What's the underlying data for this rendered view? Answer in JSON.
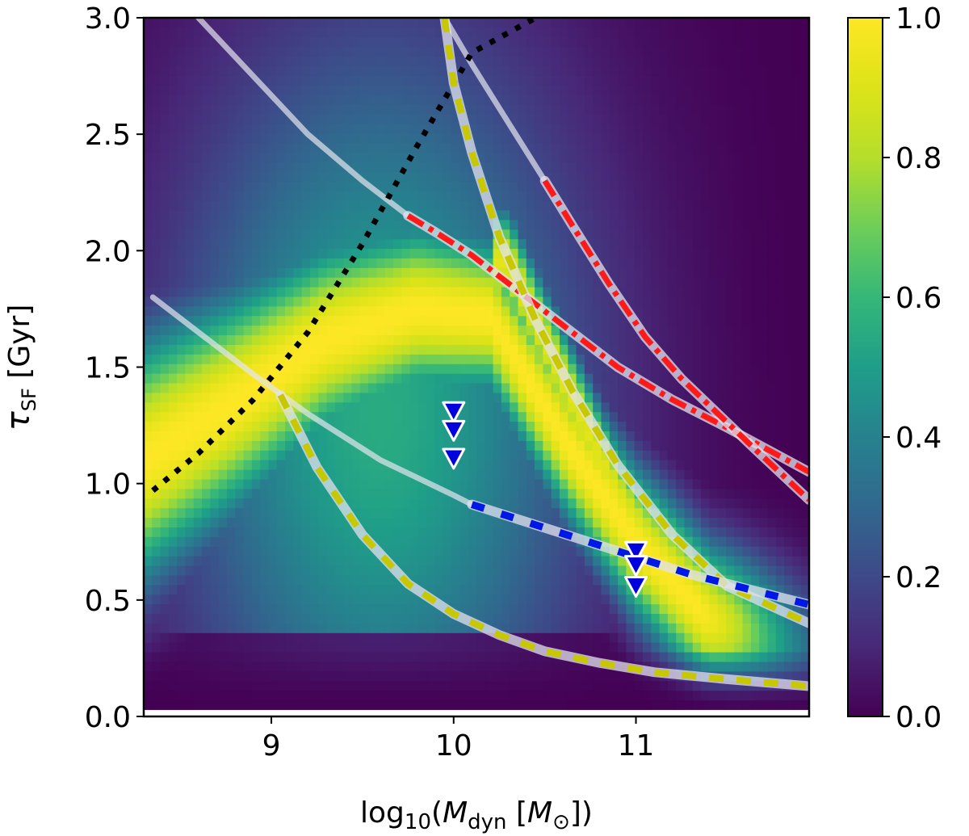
{
  "chart_data": {
    "type": "heatmap",
    "title": "",
    "xlabel": "log10(M_dyn [M_⊙])",
    "ylabel": "τ_SF [Gyr]",
    "xlabel_parts": {
      "pre": "log",
      "pre_sub": "10",
      "open": "(",
      "var": "M",
      "var_sub": "dyn",
      "unit_open": " [",
      "unit": "M",
      "unit_sub": "⊙",
      "close": "])"
    },
    "ylabel_parts": {
      "sym": "τ",
      "sym_sub": "SF",
      "unit": " [Gyr]"
    },
    "xlim": [
      8.3,
      11.95
    ],
    "ylim": [
      0.0,
      3.0
    ],
    "x_ticks": [
      9,
      10,
      11
    ],
    "x_tick_labels": [
      "9",
      "10",
      "11"
    ],
    "y_ticks": [
      0.0,
      0.5,
      1.0,
      1.5,
      2.0,
      2.5,
      3.0
    ],
    "y_tick_labels": [
      "0.0",
      "0.5",
      "1.0",
      "1.5",
      "2.0",
      "2.5",
      "3.0"
    ],
    "colorbar": {
      "colormap": "viridis",
      "range": [
        0.0,
        1.0
      ],
      "ticks": [
        0.0,
        0.2,
        0.4,
        0.6,
        0.8,
        1.0
      ],
      "tick_labels": [
        "0.0",
        "0.2",
        "0.4",
        "0.6",
        "0.8",
        "1.0"
      ]
    },
    "overlay_curves": [
      {
        "name": "dotted-boundary",
        "style": "black-dotted",
        "x": [
          8.35,
          8.6,
          8.9,
          9.2,
          9.5,
          9.8,
          10.1,
          10.45
        ],
        "y": [
          0.97,
          1.13,
          1.36,
          1.65,
          2.03,
          2.45,
          2.85,
          3.0
        ]
      },
      {
        "name": "upper-track-left",
        "style": "red-dashdot",
        "x": [
          9.75,
          9.9,
          10.1,
          10.3,
          10.6,
          10.9,
          11.2,
          11.5,
          11.95
        ],
        "y": [
          2.15,
          2.08,
          1.98,
          1.86,
          1.68,
          1.5,
          1.36,
          1.24,
          1.05
        ]
      },
      {
        "name": "upper-track-right",
        "style": "red-dashdot",
        "x": [
          10.5,
          10.65,
          10.85,
          11.05,
          11.25,
          11.45,
          11.65,
          11.95
        ],
        "y": [
          2.3,
          2.11,
          1.86,
          1.63,
          1.45,
          1.3,
          1.15,
          0.93
        ]
      },
      {
        "name": "steep-track",
        "style": "yellow-dashed",
        "x": [
          9.95,
          10.0,
          10.1,
          10.25,
          10.45,
          10.65,
          10.9,
          11.2,
          11.5,
          11.95
        ],
        "y": [
          3.0,
          2.72,
          2.42,
          2.06,
          1.7,
          1.4,
          1.08,
          0.78,
          0.56,
          0.4
        ]
      },
      {
        "name": "lower-track",
        "style": "yellow-dashed",
        "x": [
          9.05,
          9.25,
          9.5,
          9.75,
          10.0,
          10.25,
          10.5,
          10.8,
          11.1,
          11.5,
          11.95
        ],
        "y": [
          1.38,
          1.07,
          0.78,
          0.57,
          0.44,
          0.35,
          0.28,
          0.23,
          0.19,
          0.16,
          0.13
        ]
      },
      {
        "name": "middle-track",
        "style": "blue-dashed",
        "x": [
          10.1,
          10.3,
          10.5,
          10.7,
          10.9,
          11.1,
          11.3,
          11.6,
          11.95
        ],
        "y": [
          0.91,
          0.86,
          0.81,
          0.76,
          0.71,
          0.66,
          0.61,
          0.55,
          0.48
        ]
      }
    ],
    "guide_curves": [
      {
        "name": "guide-lower-wide",
        "x": [
          8.35,
          8.6,
          8.9,
          9.2,
          9.6,
          10.0,
          10.1
        ],
        "y": [
          1.8,
          1.65,
          1.47,
          1.3,
          1.1,
          0.95,
          0.91
        ]
      },
      {
        "name": "guide-upper",
        "x": [
          8.6,
          8.9,
          9.2,
          9.5,
          9.75
        ],
        "y": [
          3.0,
          2.75,
          2.5,
          2.3,
          2.15
        ]
      },
      {
        "name": "guide-steep-upper",
        "x": [
          9.95,
          10.1,
          10.3,
          10.5
        ],
        "y": [
          3.0,
          2.8,
          2.55,
          2.3
        ]
      }
    ],
    "markers": [
      {
        "type": "upper-limit",
        "x": 10.0,
        "y": 1.31
      },
      {
        "type": "upper-limit",
        "x": 10.0,
        "y": 1.23
      },
      {
        "type": "upper-limit",
        "x": 10.0,
        "y": 1.11
      },
      {
        "type": "upper-limit",
        "x": 11.0,
        "y": 0.71
      },
      {
        "type": "upper-limit",
        "x": 11.0,
        "y": 0.65
      },
      {
        "type": "upper-limit",
        "x": 11.0,
        "y": 0.56
      }
    ]
  }
}
